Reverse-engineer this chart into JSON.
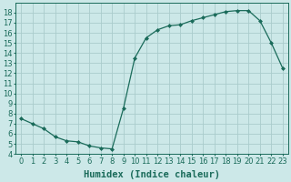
{
  "x": [
    0,
    1,
    2,
    3,
    4,
    5,
    6,
    7,
    8,
    9,
    10,
    11,
    12,
    13,
    14,
    15,
    16,
    17,
    18,
    19,
    20,
    21,
    22,
    23
  ],
  "y": [
    7.5,
    7.0,
    6.5,
    5.7,
    5.3,
    5.2,
    4.8,
    4.6,
    4.5,
    8.5,
    13.5,
    15.5,
    16.3,
    16.7,
    16.8,
    17.2,
    17.5,
    17.8,
    18.1,
    18.2,
    18.2,
    17.2,
    15.0,
    12.5
  ],
  "line_color": "#1a6b5a",
  "marker": "D",
  "marker_size": 2.0,
  "bg_color": "#cce8e8",
  "grid_color": "#aacccc",
  "xlabel": "Humidex (Indice chaleur)",
  "ylim": [
    4,
    19
  ],
  "xlim": [
    -0.5,
    23.5
  ],
  "yticks": [
    4,
    5,
    6,
    7,
    8,
    9,
    10,
    11,
    12,
    13,
    14,
    15,
    16,
    17,
    18
  ],
  "xticks": [
    0,
    1,
    2,
    3,
    4,
    5,
    6,
    7,
    8,
    9,
    10,
    11,
    12,
    13,
    14,
    15,
    16,
    17,
    18,
    19,
    20,
    21,
    22,
    23
  ],
  "tick_label_fontsize": 6.0,
  "xlabel_fontsize": 7.5,
  "linewidth": 0.9
}
